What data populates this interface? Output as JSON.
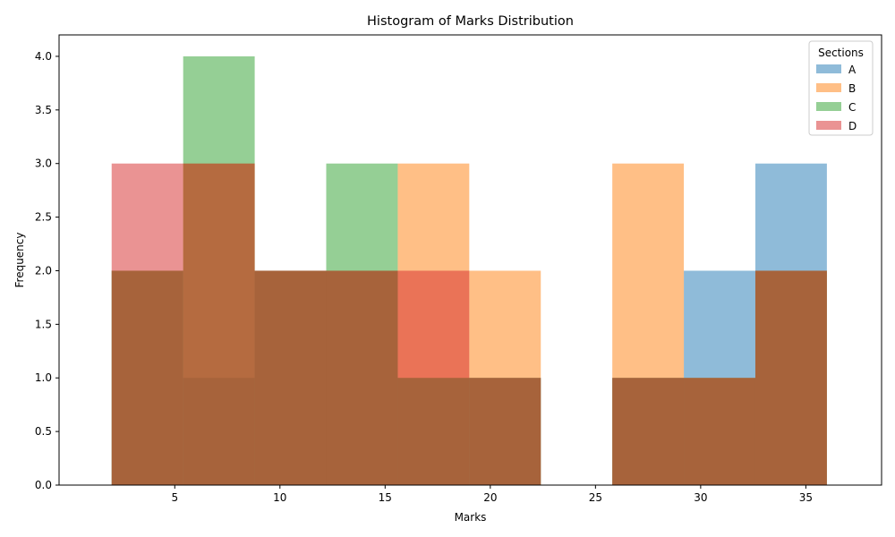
{
  "chart_data": {
    "type": "histogram",
    "title": "Histogram of Marks Distribution",
    "xlabel": "Marks",
    "ylabel": "Frequency",
    "xlim": [
      -0.5,
      38.6
    ],
    "ylim": [
      0,
      4.2
    ],
    "x_ticks": [
      5,
      10,
      15,
      20,
      25,
      30,
      35
    ],
    "y_ticks": [
      0.0,
      0.5,
      1.0,
      1.5,
      2.0,
      2.5,
      3.0,
      3.5,
      4.0
    ],
    "y_tick_labels": [
      "0.0",
      "0.5",
      "1.0",
      "1.5",
      "2.0",
      "2.5",
      "3.0",
      "3.5",
      "4.0"
    ],
    "bin_edges": [
      2,
      5.4,
      8.8,
      12.2,
      15.6,
      19.0,
      22.4,
      25.8,
      29.2,
      32.6,
      36.0
    ],
    "legend": {
      "title": "Sections",
      "position": "top-right",
      "alpha": 0.5
    },
    "series": [
      {
        "name": "A",
        "color": "#1f77b4",
        "counts": [
          2,
          1,
          2,
          2,
          1,
          1,
          0,
          1,
          2,
          3
        ]
      },
      {
        "name": "B",
        "color": "#ff7f0e",
        "counts": [
          2,
          3,
          2,
          2,
          3,
          2,
          0,
          3,
          1,
          2
        ]
      },
      {
        "name": "C",
        "color": "#2ca02c",
        "counts": [
          2,
          4,
          2,
          3,
          1,
          1,
          0,
          1,
          1,
          2
        ]
      },
      {
        "name": "D",
        "color": "#d62728",
        "counts": [
          3,
          3,
          2,
          2,
          2,
          1,
          0,
          1,
          1,
          2
        ]
      }
    ]
  }
}
